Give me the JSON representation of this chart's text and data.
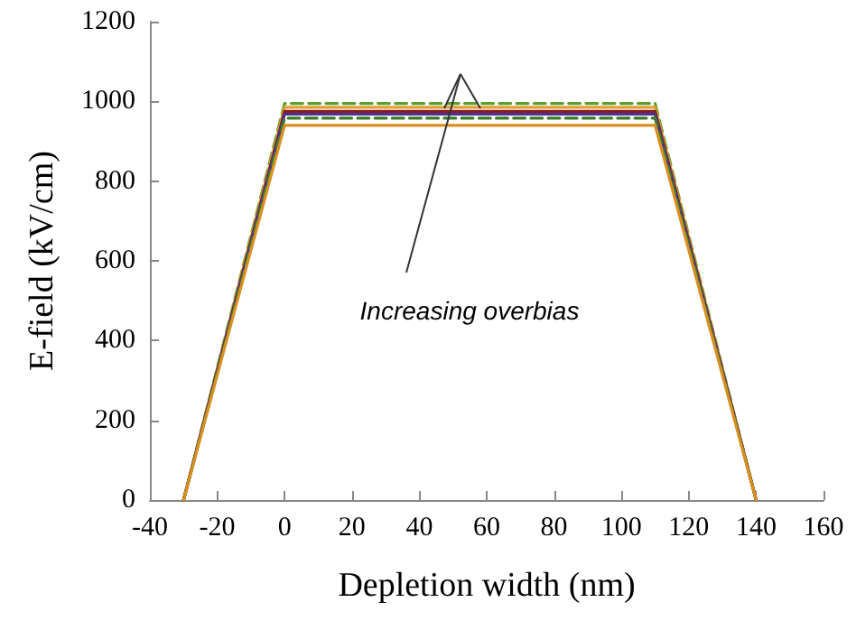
{
  "chart_data": {
    "type": "line",
    "xlabel": "Depletion width (nm)",
    "ylabel": "E-field (kV/cm)",
    "xlim": [
      -40,
      160
    ],
    "xticks": [
      -40,
      -20,
      0,
      20,
      40,
      60,
      80,
      100,
      120,
      140,
      160
    ],
    "ylim": [
      0,
      1200
    ],
    "yticks": [
      0,
      200,
      400,
      600,
      800,
      1000,
      1200
    ],
    "grid": false,
    "marker": "none",
    "annotations": [
      "Increasing overbias"
    ],
    "series": [
      {
        "color": "#5aa02c",
        "line_style": "dashed",
        "x": [
          -30,
          0,
          110,
          140
        ],
        "values": [
          0,
          995,
          995,
          0
        ]
      },
      {
        "color": "#e0a030",
        "line_style": "solid",
        "x": [
          -30,
          0,
          110,
          140
        ],
        "values": [
          0,
          985,
          985,
          0
        ]
      },
      {
        "color": "#8b1a1a",
        "line_style": "solid",
        "x": [
          -30,
          0,
          110,
          140
        ],
        "values": [
          0,
          975,
          975,
          0
        ]
      },
      {
        "color": "#50308a",
        "line_style": "solid",
        "x": [
          -30,
          0,
          110,
          140
        ],
        "values": [
          0,
          968,
          968,
          0
        ]
      },
      {
        "color": "#3a7a2a",
        "line_style": "dashed",
        "x": [
          -30,
          0,
          110,
          140
        ],
        "values": [
          0,
          958,
          958,
          0
        ]
      },
      {
        "color": "#d89020",
        "line_style": "solid",
        "x": [
          -30,
          0,
          110,
          140
        ],
        "values": [
          0,
          940,
          940,
          0
        ]
      }
    ]
  }
}
